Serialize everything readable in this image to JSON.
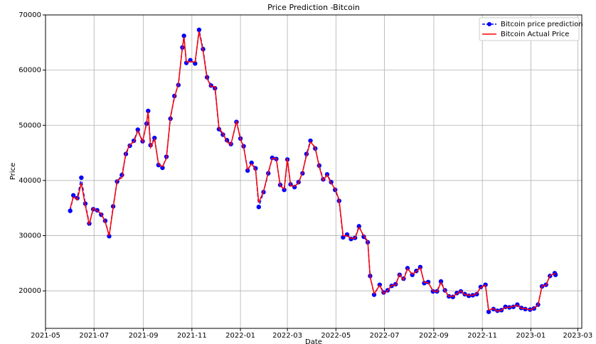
{
  "chart_data": {
    "type": "line",
    "title": "Price Prediction -Bitcoin",
    "x_label": "Date",
    "y_label": "Price",
    "x": [
      "2021-06-01",
      "2021-06-05",
      "2021-06-10",
      "2021-06-15",
      "2021-06-20",
      "2021-06-25",
      "2021-06-30",
      "2021-07-05",
      "2021-07-10",
      "2021-07-15",
      "2021-07-20",
      "2021-07-25",
      "2021-07-30",
      "2021-08-05",
      "2021-08-10",
      "2021-08-15",
      "2021-08-20",
      "2021-08-25",
      "2021-08-31",
      "2021-09-05",
      "2021-09-07",
      "2021-09-10",
      "2021-09-15",
      "2021-09-20",
      "2021-09-25",
      "2021-09-30",
      "2021-10-05",
      "2021-10-10",
      "2021-10-15",
      "2021-10-20",
      "2021-10-22",
      "2021-10-25",
      "2021-10-30",
      "2021-11-05",
      "2021-11-10",
      "2021-11-15",
      "2021-11-20",
      "2021-11-25",
      "2021-11-30",
      "2021-12-05",
      "2021-12-10",
      "2021-12-15",
      "2021-12-20",
      "2021-12-27",
      "2022-01-01",
      "2022-01-05",
      "2022-01-10",
      "2022-01-15",
      "2022-01-20",
      "2022-01-24",
      "2022-01-30",
      "2022-02-05",
      "2022-02-10",
      "2022-02-15",
      "2022-02-20",
      "2022-02-25",
      "2022-03-01",
      "2022-03-05",
      "2022-03-10",
      "2022-03-15",
      "2022-03-20",
      "2022-03-25",
      "2022-03-30",
      "2022-04-05",
      "2022-04-10",
      "2022-04-15",
      "2022-04-20",
      "2022-04-25",
      "2022-04-30",
      "2022-05-05",
      "2022-05-10",
      "2022-05-15",
      "2022-05-20",
      "2022-05-25",
      "2022-05-30",
      "2022-06-05",
      "2022-06-10",
      "2022-06-13",
      "2022-06-18",
      "2022-06-25",
      "2022-06-30",
      "2022-07-05",
      "2022-07-10",
      "2022-07-15",
      "2022-07-20",
      "2022-07-25",
      "2022-07-30",
      "2022-08-05",
      "2022-08-10",
      "2022-08-15",
      "2022-08-20",
      "2022-08-25",
      "2022-08-31",
      "2022-09-05",
      "2022-09-10",
      "2022-09-15",
      "2022-09-20",
      "2022-09-25",
      "2022-09-30",
      "2022-10-05",
      "2022-10-10",
      "2022-10-15",
      "2022-10-20",
      "2022-10-25",
      "2022-10-30",
      "2022-11-05",
      "2022-11-09",
      "2022-11-15",
      "2022-11-20",
      "2022-11-25",
      "2022-11-30",
      "2022-12-05",
      "2022-12-10",
      "2022-12-15",
      "2022-12-20",
      "2022-12-25",
      "2022-12-31",
      "2023-01-05",
      "2023-01-10",
      "2023-01-15",
      "2023-01-20",
      "2023-01-25",
      "2023-01-31",
      "2023-02-01"
    ],
    "series": [
      {
        "name": "Bitcoin price prediction",
        "color": "#0000ff",
        "style": "dashed-dots",
        "values": [
          34500,
          37300,
          36800,
          40500,
          35800,
          32200,
          34800,
          34600,
          33800,
          32700,
          29900,
          35300,
          39800,
          41000,
          44800,
          46300,
          47200,
          49200,
          47100,
          50300,
          52600,
          46400,
          47700,
          42800,
          42300,
          44300,
          51200,
          55300,
          57300,
          64100,
          66200,
          61300,
          61800,
          61200,
          67300,
          63800,
          58700,
          57200,
          56700,
          49300,
          48300,
          47300,
          46600,
          50600,
          47600,
          46200,
          41800,
          43200,
          42200,
          35200,
          37900,
          41300,
          44100,
          43900,
          39200,
          38300,
          43800,
          39300,
          38800,
          39700,
          41300,
          44800,
          47200,
          45800,
          42700,
          40200,
          41100,
          39700,
          38300,
          36300,
          29700,
          30200,
          29400,
          29600,
          31700,
          29800,
          28800,
          22700,
          19300,
          21100,
          19700,
          20100,
          20900,
          21200,
          22900,
          22200,
          24100,
          22900,
          23600,
          24300,
          21400,
          21600,
          19900,
          19900,
          21700,
          20100,
          19000,
          18900,
          19600,
          19900,
          19400,
          19100,
          19200,
          19400,
          20700,
          21100,
          16200,
          16700,
          16400,
          16500,
          17100,
          17000,
          17100,
          17500,
          16900,
          16700,
          16600,
          16800,
          17500,
          20800,
          21100,
          22700,
          23200,
          22900
        ]
      },
      {
        "name": "Bitcoin Actual Price",
        "color": "#ff0000",
        "style": "solid",
        "values": [
          35000,
          37000,
          36500,
          39500,
          35500,
          32000,
          35000,
          34500,
          34000,
          32500,
          30000,
          35000,
          40000,
          40500,
          45000,
          46500,
          47000,
          49000,
          47000,
          50500,
          52500,
          46000,
          47500,
          43000,
          42500,
          44000,
          51500,
          55000,
          57500,
          64000,
          66000,
          61500,
          61500,
          61500,
          67000,
          63500,
          58500,
          57000,
          57000,
          49500,
          48500,
          47000,
          46500,
          50800,
          47500,
          46000,
          42000,
          43000,
          42000,
          36000,
          38000,
          41500,
          44000,
          44000,
          39000,
          38500,
          44000,
          39000,
          39000,
          39500,
          41500,
          44500,
          47000,
          46000,
          42500,
          40000,
          41000,
          39500,
          38500,
          36500,
          30000,
          30000,
          29500,
          29500,
          31500,
          30000,
          29000,
          22500,
          19500,
          21000,
          19500,
          20000,
          21000,
          21000,
          23000,
          22000,
          24000,
          23000,
          23500,
          24200,
          21500,
          21500,
          20000,
          19800,
          21500,
          20000,
          19000,
          19000,
          19500,
          20000,
          19300,
          19200,
          19200,
          19500,
          20600,
          21000,
          16500,
          16800,
          16300,
          16500,
          17000,
          17000,
          17200,
          17400,
          16800,
          16800,
          16550,
          16850,
          17400,
          20900,
          21000,
          22800,
          23100,
          23000
        ]
      }
    ],
    "xlim": [
      "2021-05-01",
      "2023-03-06"
    ],
    "xticks": [
      "2021-05",
      "2021-07",
      "2021-09",
      "2021-11",
      "2022-01",
      "2022-03",
      "2022-05",
      "2022-07",
      "2022-09",
      "2022-11",
      "2023-01",
      "2023-03"
    ],
    "ylim": [
      13200,
      70000
    ],
    "yticks": [
      20000,
      30000,
      40000,
      50000,
      60000,
      70000
    ],
    "grid": true,
    "legend": "upper right"
  }
}
